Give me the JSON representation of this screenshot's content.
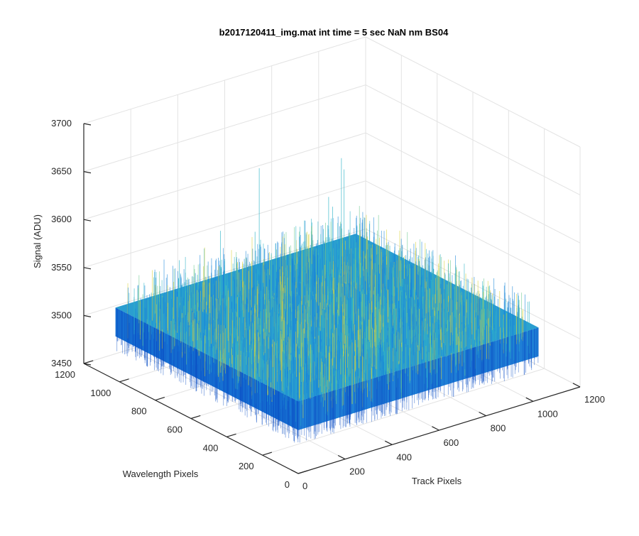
{
  "chart_data": {
    "type": "surface",
    "title": "b2017120411_img.mat int time = 5 sec  NaN nm BS04",
    "xlabel": "Track Pixels",
    "ylabel": "Wavelength Pixels",
    "zlabel": "Signal (ADU)",
    "xlim": [
      0,
      1200
    ],
    "ylim": [
      0,
      1200
    ],
    "zlim": [
      3450,
      3700
    ],
    "x_ticks": [
      "0",
      "200",
      "400",
      "600",
      "800",
      "1000",
      "1200"
    ],
    "y_ticks": [
      "0",
      "200",
      "400",
      "600",
      "800",
      "1000",
      "1200"
    ],
    "z_ticks": [
      "3450",
      "3500",
      "3550",
      "3600",
      "3650",
      "3700"
    ],
    "data_extent": {
      "x": [
        1,
        1024
      ],
      "y": [
        1,
        1024
      ]
    },
    "signal_mean": 3525,
    "signal_noise_range": [
      3495,
      3560
    ],
    "signal_spike_max": 3640,
    "grid": true,
    "colormap": [
      "#0b4fc4",
      "#1a86d8",
      "#2fb4c8",
      "#6cc98e",
      "#d9d23a"
    ]
  }
}
